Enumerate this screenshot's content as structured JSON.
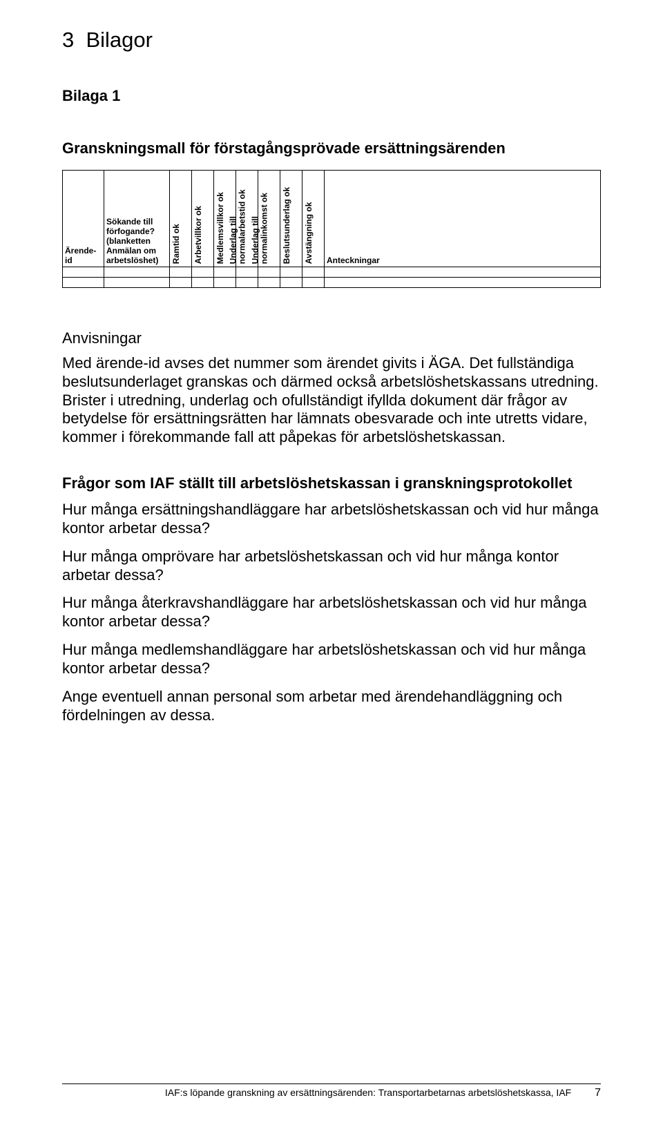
{
  "section_number": "3",
  "section_title": "Bilagor",
  "attachments": [
    {
      "label": "Bilaga 1"
    }
  ],
  "form_title": "Granskningsmall för förstagångsprövade ersättningsärenden",
  "table": {
    "columns": [
      {
        "key": "arende_id",
        "label": "Ärende-id",
        "rotated": false
      },
      {
        "key": "sokande",
        "label": "Sökande till förfogande? (blanketten Anmälan om arbetslöshet)",
        "rotated": false
      },
      {
        "key": "ramtid",
        "label": "Ramtid ok",
        "rotated": true
      },
      {
        "key": "arbetvillkor",
        "label": "Arbetvillkor ok",
        "rotated": true
      },
      {
        "key": "medlemsvillkor",
        "label": "Medlemsvillkor ok",
        "rotated": true
      },
      {
        "key": "underlag_arbetstid",
        "label": "Underlag till normalarbetstid ok",
        "rotated": true,
        "twoLine": true
      },
      {
        "key": "underlag_inkomst",
        "label": "Underlag till normalinkomst ok",
        "rotated": true,
        "twoLine": true
      },
      {
        "key": "beslutsunderlag",
        "label": "Beslutsunderlag ok",
        "rotated": true
      },
      {
        "key": "avstangning",
        "label": "Avstängning ok",
        "rotated": true
      },
      {
        "key": "anteckningar",
        "label": "Anteckningar",
        "rotated": false
      }
    ],
    "rows": [
      {},
      {}
    ]
  },
  "instructions_heading": "Anvisningar",
  "instructions_body": "Med ärende-id avses det nummer som ärendet givits i ÄGA. Det fullständiga beslutsunderlaget granskas och därmed också arbetslöshetskassans utredning. Brister i utredning, underlag och ofullständigt ifyllda dokument där frågor av betydelse för ersättningsrätten har lämnats obesvarade och inte utretts vidare, kommer i förekommande fall att påpekas för arbetslöshetskassan.",
  "questions_heading": "Frågor som IAF ställt till arbetslöshetskassan i granskningsprotokollet",
  "questions": [
    "Hur många ersättningshandläggare har arbetslöshetskassan och vid hur många kontor arbetar dessa?",
    "Hur många omprövare har arbetslöshetskassan och vid hur många kontor arbetar dessa?",
    "Hur många återkravshandläggare har arbetslöshetskassan och vid hur många kontor arbetar dessa?",
    "Hur många medlemshandläggare har arbetslöshetskassan och vid hur många kontor arbetar dessa?",
    "Ange eventuell annan personal som arbetar med ärendehandläggning och fördelningen av dessa."
  ],
  "footer": {
    "text": "IAF:s löpande granskning av ersättningsärenden: Transportarbetarnas arbetslöshetskassa, IAF",
    "page": "7"
  }
}
